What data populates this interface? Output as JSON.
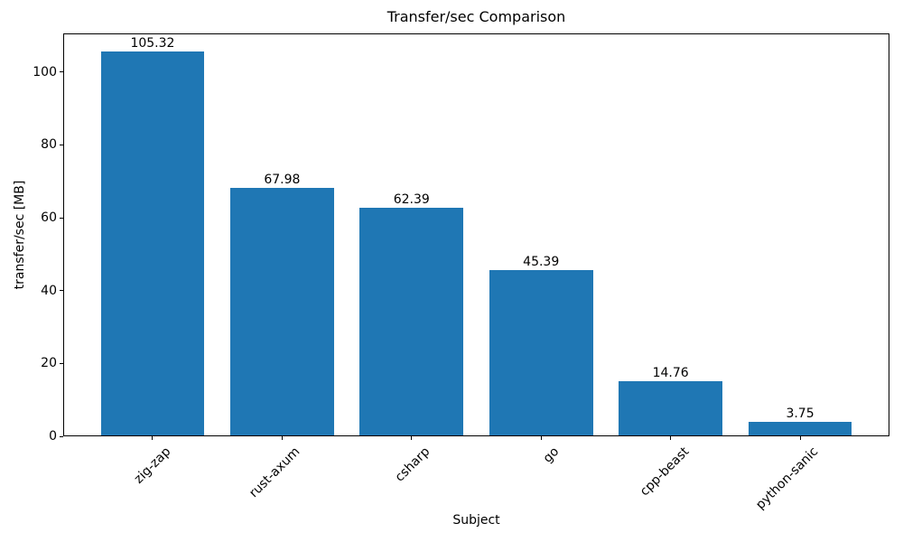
{
  "chart_data": {
    "type": "bar",
    "title": "Transfer/sec Comparison",
    "xlabel": "Subject",
    "ylabel": "transfer/sec [MB]",
    "categories": [
      "zig-zap",
      "rust-axum",
      "csharp",
      "go",
      "cpp-beast",
      "python-sanic"
    ],
    "values": [
      105.32,
      67.98,
      62.39,
      45.39,
      14.76,
      3.75
    ],
    "bar_labels": [
      "105.32",
      "67.98",
      "62.39",
      "45.39",
      "14.76",
      "3.75"
    ],
    "ylim": [
      0,
      110.6
    ],
    "yticks": [
      0,
      20,
      40,
      60,
      80,
      100
    ],
    "bar_color": "#1f77b4",
    "text_color": "#000000",
    "background_color": "#ffffff",
    "grid": false,
    "bar_width_fraction": 0.8,
    "xtick_rotation_deg": 45,
    "legend_position": "none"
  }
}
